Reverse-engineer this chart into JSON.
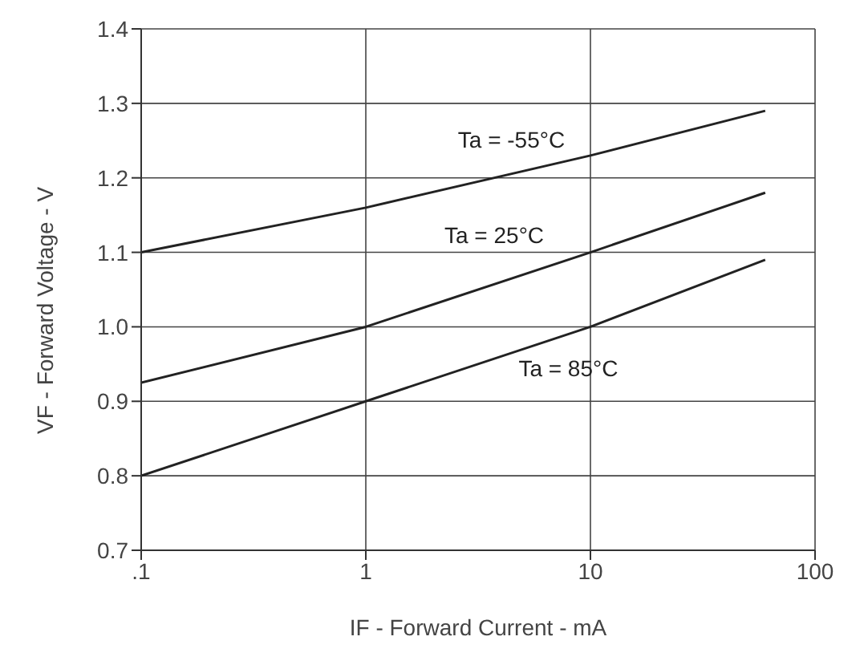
{
  "chart_data": {
    "type": "line",
    "xlabel": "IF - Forward Current - mA",
    "ylabel": "VF - Forward Voltage - V",
    "log": "x",
    "grid": true,
    "legend": false,
    "marker": "none",
    "line_style": "solid",
    "xlim": [
      0.1,
      100
    ],
    "xticks": [
      {
        "value": 0.1,
        "label": ".1"
      },
      1,
      10,
      100
    ],
    "ylim": [
      0.7,
      1.4
    ],
    "yticks": [
      0.7,
      0.8,
      0.9,
      {
        "value": 1,
        "label": "1.0"
      },
      1.1,
      1.2,
      1.3,
      1.4
    ],
    "series": [
      {
        "name": "Ta = -55°C",
        "color": "#222222",
        "x": [
          0.1,
          1,
          10,
          60
        ],
        "values": [
          1.1,
          1.16,
          1.23,
          1.29
        ]
      },
      {
        "name": "Ta = 25°C",
        "color": "#222222",
        "x": [
          0.1,
          1,
          10,
          60
        ],
        "values": [
          0.925,
          1.0,
          1.1,
          1.18
        ]
      },
      {
        "name": "Ta = 85°C",
        "color": "#222222",
        "x": [
          0.1,
          1,
          10,
          60
        ],
        "values": [
          0.8,
          0.9,
          1.0,
          1.09
        ]
      }
    ]
  }
}
